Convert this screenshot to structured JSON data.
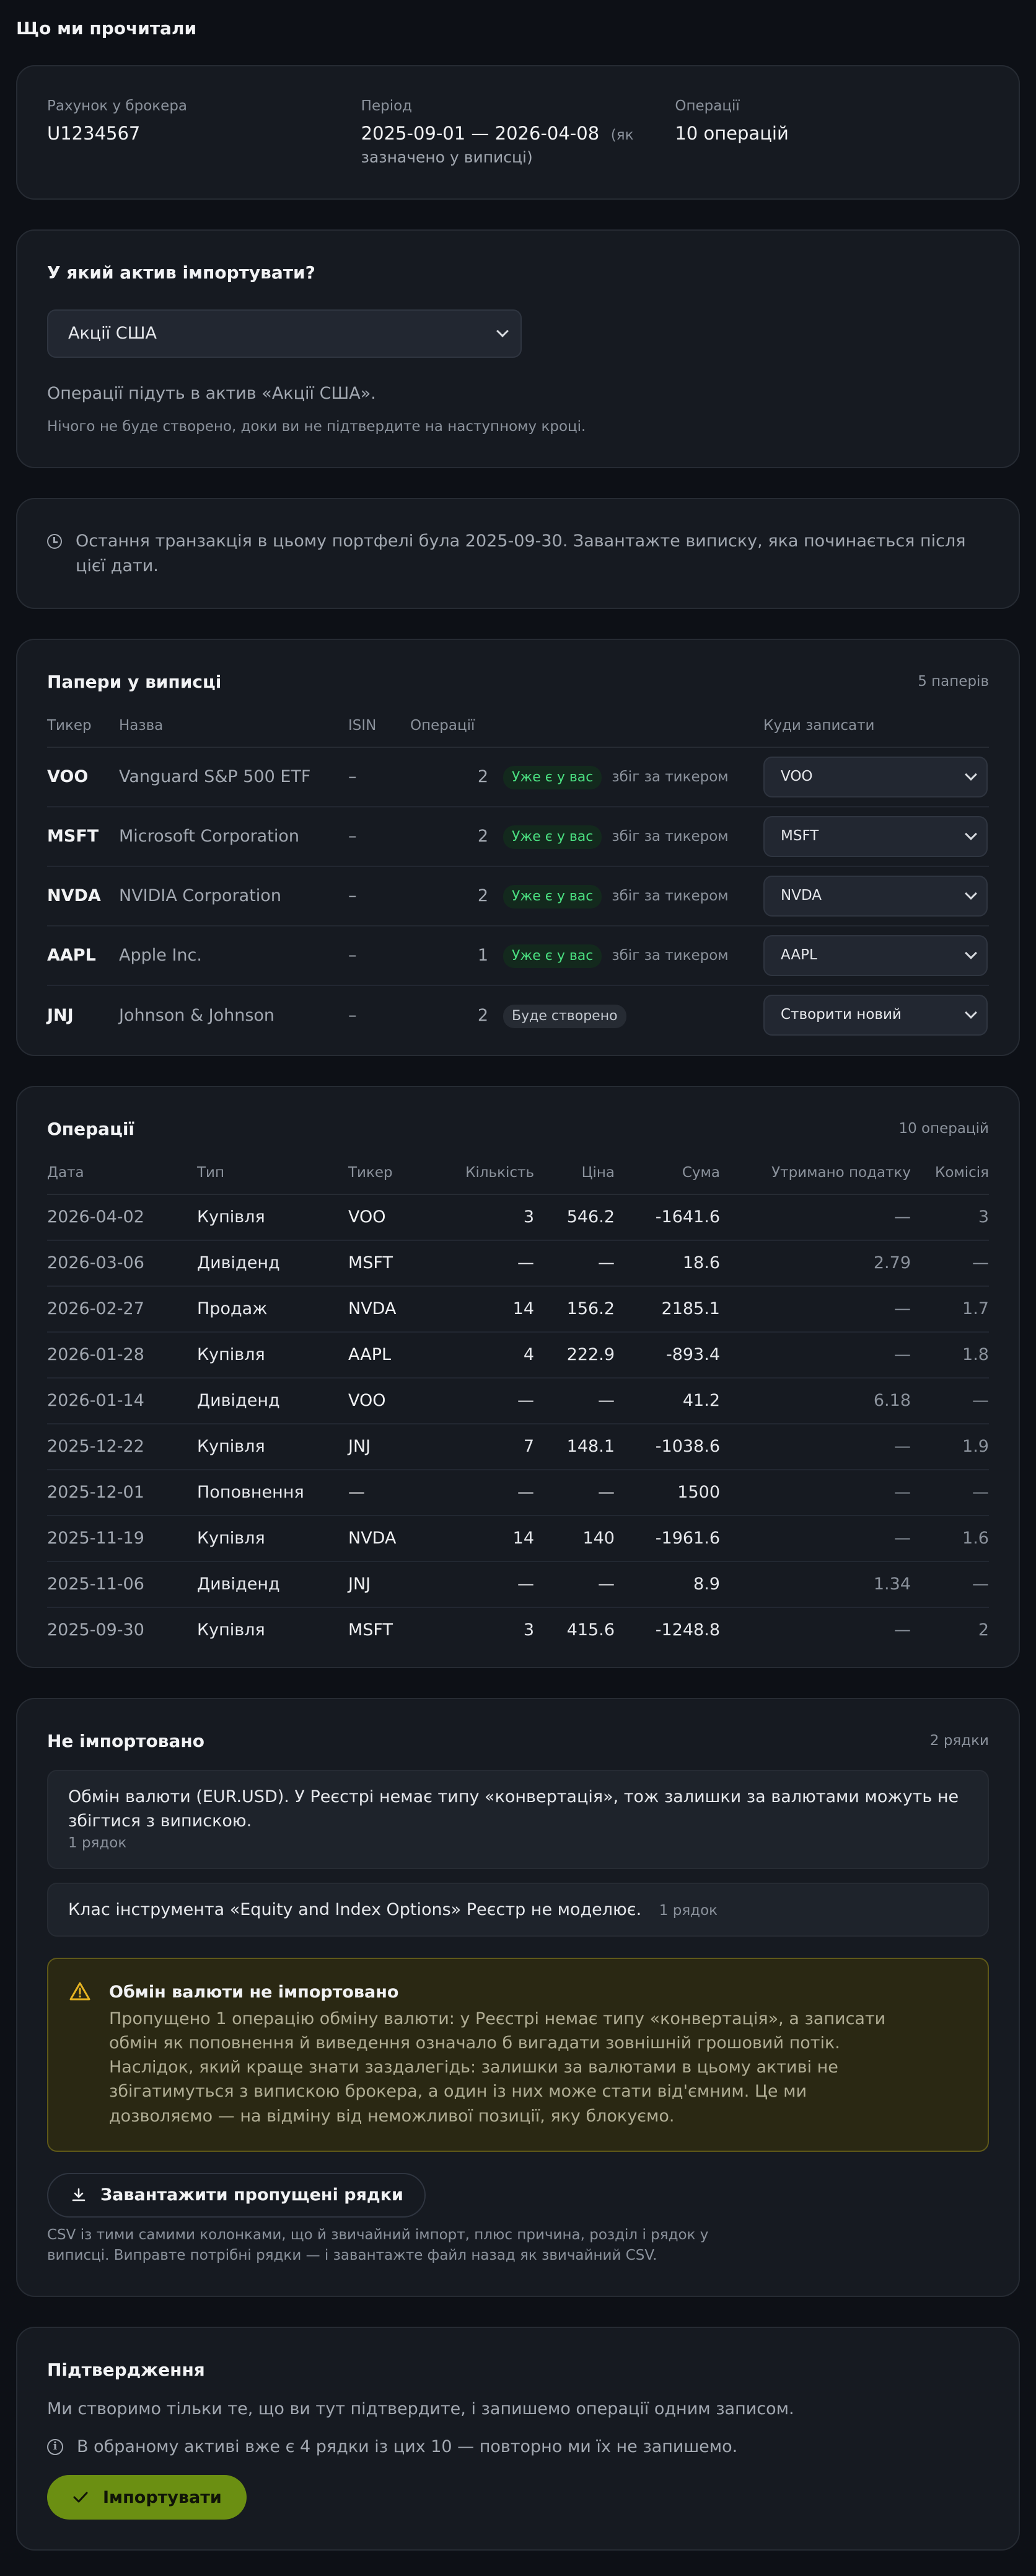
{
  "page_title": "Що ми прочитали",
  "summary": {
    "account_label": "Рахунок у брокера",
    "account_value": "U1234567",
    "period_label": "Період",
    "period_value": "2025-09-01 — 2026-04-08",
    "period_note_a": "(як",
    "period_note_b": "зазначено у виписці)",
    "ops_label": "Операції",
    "ops_value": "10 операцій"
  },
  "asset": {
    "question": "У який актив імпортувати?",
    "selected": "Акції США",
    "hint": "Операції підуть в актив «Акції США».",
    "note": "Нічого не буде створено, доки ви не підтвердите на наступному кроці."
  },
  "last_tx": {
    "text": "Остання транзакція в цьому портфелі була 2025-09-30. Завантажте виписку, яка починається після цієї дати."
  },
  "papers": {
    "title": "Папери у виписці",
    "count": "5 паперів",
    "headers": {
      "ticker": "Тикер",
      "name": "Назва",
      "isin": "ISIN",
      "ops": "Операції",
      "target": "Куди записати"
    },
    "rows": [
      {
        "ticker": "VOO",
        "name": "Vanguard S&P 500 ETF",
        "isin": "–",
        "ops": "2",
        "badge": "Уже є у вас",
        "match": "збіг за тикером",
        "target": "VOO"
      },
      {
        "ticker": "MSFT",
        "name": "Microsoft Corporation",
        "isin": "–",
        "ops": "2",
        "badge": "Уже є у вас",
        "match": "збіг за тикером",
        "target": "MSFT"
      },
      {
        "ticker": "NVDA",
        "name": "NVIDIA Corporation",
        "isin": "–",
        "ops": "2",
        "badge": "Уже є у вас",
        "match": "збіг за тикером",
        "target": "NVDA"
      },
      {
        "ticker": "AAPL",
        "name": "Apple Inc.",
        "isin": "–",
        "ops": "1",
        "badge": "Уже є у вас",
        "match": "збіг за тикером",
        "target": "AAPL"
      },
      {
        "ticker": "JNJ",
        "name": "Johnson & Johnson",
        "isin": "–",
        "ops": "2",
        "badge": "Буде створено",
        "match": "",
        "target": "Створити новий"
      }
    ]
  },
  "operations": {
    "title": "Операції",
    "count": "10 операцій",
    "headers": {
      "date": "Дата",
      "type": "Тип",
      "ticker": "Тикер",
      "qty": "Кількість",
      "price": "Ціна",
      "sum": "Сума",
      "tax": "Утримано податку",
      "fee": "Комісія"
    },
    "rows": [
      {
        "date": "2026-04-02",
        "type": "Купівля",
        "ticker": "VOO",
        "qty": "3",
        "price": "546.2",
        "sum": "-1641.6",
        "tax": "—",
        "fee": "3"
      },
      {
        "date": "2026-03-06",
        "type": "Дивіденд",
        "ticker": "MSFT",
        "qty": "—",
        "price": "—",
        "sum": "18.6",
        "tax": "2.79",
        "fee": "—"
      },
      {
        "date": "2026-02-27",
        "type": "Продаж",
        "ticker": "NVDA",
        "qty": "14",
        "price": "156.2",
        "sum": "2185.1",
        "tax": "—",
        "fee": "1.7"
      },
      {
        "date": "2026-01-28",
        "type": "Купівля",
        "ticker": "AAPL",
        "qty": "4",
        "price": "222.9",
        "sum": "-893.4",
        "tax": "—",
        "fee": "1.8"
      },
      {
        "date": "2026-01-14",
        "type": "Дивіденд",
        "ticker": "VOO",
        "qty": "—",
        "price": "—",
        "sum": "41.2",
        "tax": "6.18",
        "fee": "—"
      },
      {
        "date": "2025-12-22",
        "type": "Купівля",
        "ticker": "JNJ",
        "qty": "7",
        "price": "148.1",
        "sum": "-1038.6",
        "tax": "—",
        "fee": "1.9"
      },
      {
        "date": "2025-12-01",
        "type": "Поповнення",
        "ticker": "—",
        "qty": "—",
        "price": "—",
        "sum": "1500",
        "tax": "—",
        "fee": "—"
      },
      {
        "date": "2025-11-19",
        "type": "Купівля",
        "ticker": "NVDA",
        "qty": "14",
        "price": "140",
        "sum": "-1961.6",
        "tax": "—",
        "fee": "1.6"
      },
      {
        "date": "2025-11-06",
        "type": "Дивіденд",
        "ticker": "JNJ",
        "qty": "—",
        "price": "—",
        "sum": "8.9",
        "tax": "1.34",
        "fee": "—"
      },
      {
        "date": "2025-09-30",
        "type": "Купівля",
        "ticker": "MSFT",
        "qty": "3",
        "price": "415.6",
        "sum": "-1248.8",
        "tax": "—",
        "fee": "2"
      }
    ]
  },
  "not_imported": {
    "title": "Не імпортовано",
    "count": "2 рядки",
    "items": [
      {
        "text": "Обмін валюти (EUR.USD). У Реєстрі немає типу «конвертація», тож залишки за валютами можуть не збігтися з випискою.",
        "rows": "1 рядок"
      },
      {
        "text": "Клас інструмента «Equity and Index Options» Реєстр не моделює.",
        "rows": "1 рядок"
      }
    ],
    "warning_title": "Обмін валюти не імпортовано",
    "warning_text": "Пропущено 1 операцію обміну валюти: у Реєстрі немає типу «конвертація», а записати обмін як поповнення й виведення означало б вигадати зовнішній грошовий потік. Наслідок, який краще знати заздалегідь: залишки за валютами в цьому активі не збігатимуться з випискою брокера, а один із них може стати від'ємним. Це ми дозволяємо — на відміну від неможливої позиції, яку блокуємо.",
    "download_label": "Завантажити пропущені рядки",
    "download_note": "CSV із тими самими колонками, що й звичайний імпорт, плюс причина, розділ і рядок у виписці. Виправте потрібні рядки — і завантажте файл назад як звичайний CSV."
  },
  "confirm": {
    "title": "Підтвердження",
    "text": "Ми створимо тільки те, що ви тут підтвердите, і запишемо операції одним записом.",
    "info": "В обраному активі вже є 4 рядки із цих 10 — повторно ми їх не запишемо.",
    "import_label": "Імпортувати"
  }
}
